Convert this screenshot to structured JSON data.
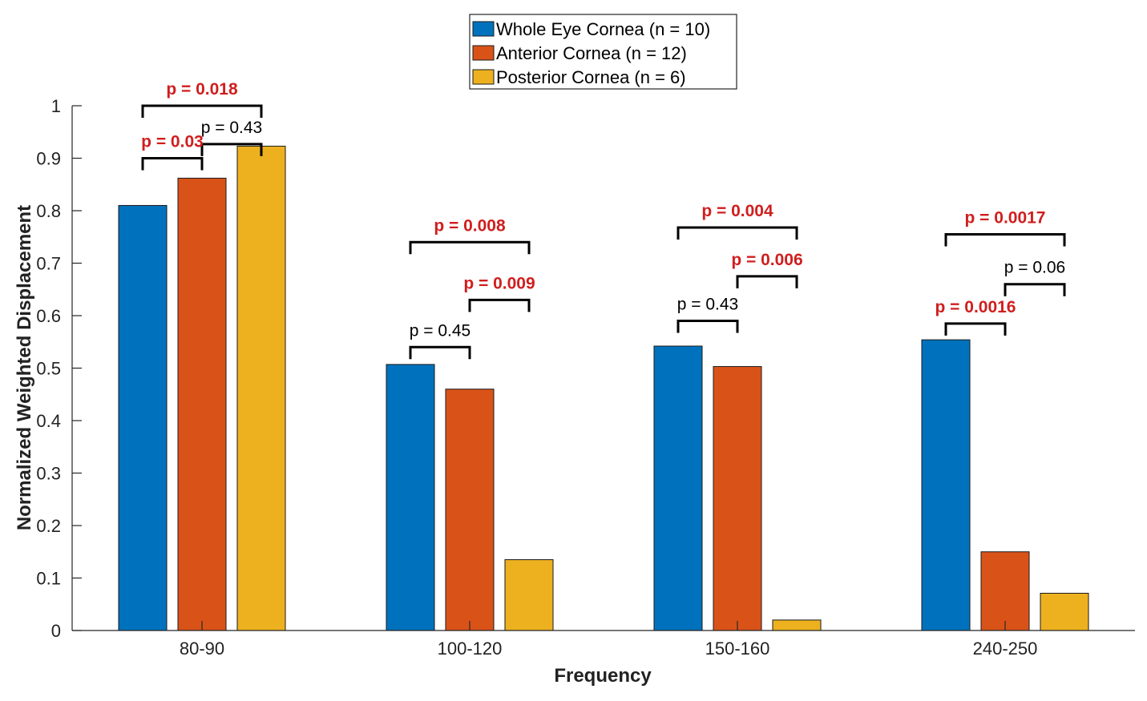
{
  "chart_data": {
    "type": "bar",
    "title": "",
    "xlabel": "Frequency",
    "ylabel": "Normalized Weighted Displacement",
    "ylim": [
      0,
      1
    ],
    "yticks": [
      "0",
      "0.1",
      "0.2",
      "0.3",
      "0.4",
      "0.5",
      "0.6",
      "0.7",
      "0.8",
      "0.9",
      "1"
    ],
    "categories": [
      "80-90",
      "100-120",
      "150-160",
      "240-250"
    ],
    "series": [
      {
        "name": "Whole Eye Cornea (n = 10)",
        "color": "#0072BD",
        "values": [
          0.81,
          0.507,
          0.542,
          0.554
        ]
      },
      {
        "name": "Anterior Cornea (n = 12)",
        "color": "#D95319",
        "values": [
          0.862,
          0.46,
          0.503,
          0.15
        ]
      },
      {
        "name": "Posterior Cornea (n = 6)",
        "color": "#EDB120",
        "values": [
          0.923,
          0.135,
          0.02,
          0.071
        ]
      }
    ],
    "legend_position": "top-center",
    "grid": false,
    "significance_color": "#D01E1E",
    "annotations": [
      {
        "category": 0,
        "from": 0,
        "to": 2,
        "level": 1.0,
        "text": "p = 0.018",
        "significant": true
      },
      {
        "category": 0,
        "from": 1,
        "to": 2,
        "level": 0.927,
        "text": "p = 0.43",
        "significant": false
      },
      {
        "category": 0,
        "from": 0,
        "to": 1,
        "level": 0.9,
        "text": "p = 0.03",
        "significant": true
      },
      {
        "category": 1,
        "from": 0,
        "to": 2,
        "level": 0.74,
        "text": "p = 0.008",
        "significant": true
      },
      {
        "category": 1,
        "from": 1,
        "to": 2,
        "level": 0.63,
        "text": "p = 0.009",
        "significant": true
      },
      {
        "category": 1,
        "from": 0,
        "to": 1,
        "level": 0.54,
        "text": "p = 0.45",
        "significant": false
      },
      {
        "category": 2,
        "from": 0,
        "to": 2,
        "level": 0.768,
        "text": "p = 0.004",
        "significant": true
      },
      {
        "category": 2,
        "from": 1,
        "to": 2,
        "level": 0.675,
        "text": "p = 0.006",
        "significant": true
      },
      {
        "category": 2,
        "from": 0,
        "to": 1,
        "level": 0.59,
        "text": "p = 0.43",
        "significant": false
      },
      {
        "category": 3,
        "from": 0,
        "to": 2,
        "level": 0.755,
        "text": "p = 0.0017",
        "significant": true
      },
      {
        "category": 3,
        "from": 1,
        "to": 2,
        "level": 0.66,
        "text": "p = 0.06",
        "significant": false
      },
      {
        "category": 3,
        "from": 0,
        "to": 1,
        "level": 0.585,
        "text": "p = 0.0016",
        "significant": true
      }
    ]
  }
}
